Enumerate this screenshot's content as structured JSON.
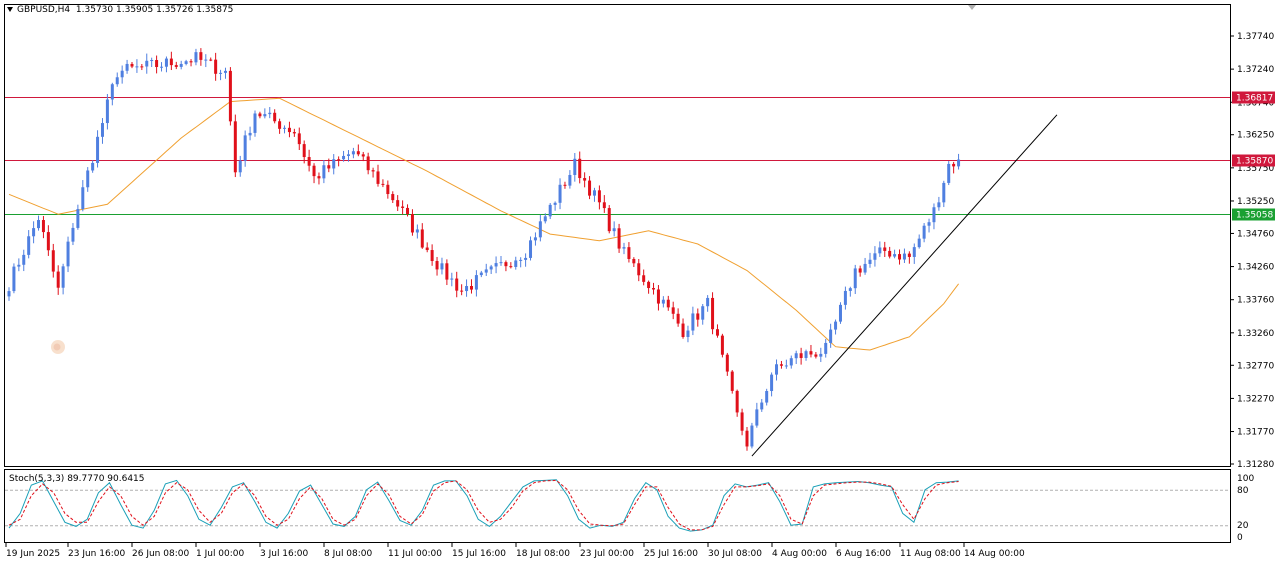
{
  "header": {
    "symbol": "GBPUSD,H4",
    "open": "1.35730",
    "high": "1.35905",
    "low": "1.35726",
    "close": "1.35875"
  },
  "stoch_header": {
    "label": "Stoch(5,3,3)",
    "main": "89.7770",
    "signal": "90.6415"
  },
  "colors": {
    "bull": "#4f7fe0",
    "bear": "#e0101a",
    "ma": "#f0a030",
    "resistance": "#d0183c",
    "support": "#1aa032",
    "trendline": "#000000",
    "stoch_main": "#1aa0b8",
    "stoch_signal": "#e0101a"
  },
  "price_axis": {
    "labels": [
      "1.37740",
      "1.37240",
      "1.36740",
      "1.36250",
      "1.35750",
      "1.35250",
      "1.34760",
      "1.34260",
      "1.33760",
      "1.33260",
      "1.32770",
      "1.32270",
      "1.31770",
      "1.31280"
    ]
  },
  "levels": [
    {
      "name": "resistance-upper",
      "value": "1.36817",
      "color": "#d0183c"
    },
    {
      "name": "resistance-lower",
      "value": "1.35870",
      "color": "#d0183c"
    },
    {
      "name": "support",
      "value": "1.35058",
      "color": "#1aa032"
    }
  ],
  "time_axis": {
    "labels": [
      "19 Jun 2025",
      "23 Jun 16:00",
      "26 Jun 08:00",
      "1 Jul 00:00",
      "3 Jul 16:00",
      "8 Jul 08:00",
      "11 Jul 00:00",
      "15 Jul 16:00",
      "18 Jul 08:00",
      "23 Jul 00:00",
      "25 Jul 16:00",
      "30 Jul 08:00",
      "4 Aug 00:00",
      "6 Aug 16:00",
      "11 Aug 08:00",
      "14 Aug 00:00"
    ]
  },
  "stoch_axis": {
    "labels": [
      "100",
      "80",
      "20",
      "0"
    ]
  },
  "chart_data": {
    "type": "candlestick",
    "title": "GBPUSD,H4",
    "ylim": [
      1.3128,
      1.3805
    ],
    "key_points": [
      {
        "i": 0,
        "price": 1.34
      },
      {
        "i": 6,
        "price": 1.35
      },
      {
        "i": 10,
        "price": 1.339
      },
      {
        "i": 13,
        "price": 1.349
      },
      {
        "i": 22,
        "price": 1.372
      },
      {
        "i": 38,
        "price": 1.374
      },
      {
        "i": 44,
        "price": 1.372
      },
      {
        "i": 46,
        "price": 1.357
      },
      {
        "i": 50,
        "price": 1.366
      },
      {
        "i": 58,
        "price": 1.363
      },
      {
        "i": 62,
        "price": 1.356
      },
      {
        "i": 70,
        "price": 1.36
      },
      {
        "i": 78,
        "price": 1.353
      },
      {
        "i": 88,
        "price": 1.342
      },
      {
        "i": 92,
        "price": 1.339
      },
      {
        "i": 105,
        "price": 1.345
      },
      {
        "i": 115,
        "price": 1.358
      },
      {
        "i": 120,
        "price": 1.352
      },
      {
        "i": 125,
        "price": 1.3445
      },
      {
        "i": 130,
        "price": 1.34
      },
      {
        "i": 137,
        "price": 1.333
      },
      {
        "i": 142,
        "price": 1.337
      },
      {
        "i": 148,
        "price": 1.32
      },
      {
        "i": 150,
        "price": 1.316
      },
      {
        "i": 155,
        "price": 1.3265
      },
      {
        "i": 160,
        "price": 1.329
      },
      {
        "i": 166,
        "price": 1.33
      },
      {
        "i": 172,
        "price": 1.342
      },
      {
        "i": 178,
        "price": 1.345
      },
      {
        "i": 183,
        "price": 1.344
      },
      {
        "i": 188,
        "price": 1.351
      },
      {
        "i": 191,
        "price": 1.358
      },
      {
        "i": 193,
        "price": 1.35875
      }
    ],
    "moving_average": [
      {
        "i": 0,
        "price": 1.3535
      },
      {
        "i": 10,
        "price": 1.3505
      },
      {
        "i": 20,
        "price": 1.352
      },
      {
        "i": 35,
        "price": 1.362
      },
      {
        "i": 45,
        "price": 1.3675
      },
      {
        "i": 55,
        "price": 1.368
      },
      {
        "i": 70,
        "price": 1.3625
      },
      {
        "i": 85,
        "price": 1.357
      },
      {
        "i": 100,
        "price": 1.351
      },
      {
        "i": 110,
        "price": 1.3475
      },
      {
        "i": 120,
        "price": 1.3465
      },
      {
        "i": 130,
        "price": 1.348
      },
      {
        "i": 140,
        "price": 1.346
      },
      {
        "i": 150,
        "price": 1.342
      },
      {
        "i": 160,
        "price": 1.336
      },
      {
        "i": 168,
        "price": 1.3305
      },
      {
        "i": 175,
        "price": 1.33
      },
      {
        "i": 183,
        "price": 1.332
      },
      {
        "i": 190,
        "price": 1.337
      },
      {
        "i": 193,
        "price": 1.34
      }
    ],
    "trendline": [
      {
        "i": 151,
        "price": 1.314
      },
      {
        "i": 213,
        "price": 1.3655
      }
    ],
    "stochastic": {
      "k": [
        15,
        40,
        88,
        95,
        60,
        25,
        18,
        30,
        75,
        92,
        55,
        20,
        15,
        45,
        90,
        96,
        70,
        30,
        20,
        50,
        85,
        92,
        60,
        25,
        15,
        40,
        78,
        88,
        55,
        22,
        18,
        35,
        80,
        93,
        62,
        28,
        20,
        45,
        88,
        95,
        95,
        70,
        30,
        18,
        35,
        60,
        85,
        95,
        96,
        97,
        70,
        30,
        15,
        20,
        18,
        25,
        65,
        92,
        80,
        35,
        15,
        10,
        12,
        20,
        70,
        90,
        85,
        88,
        92,
        60,
        20,
        22,
        85,
        90,
        92,
        93,
        94,
        92,
        88,
        85,
        40,
        25,
        80,
        92,
        93,
        95
      ],
      "d": [
        20,
        30,
        70,
        90,
        75,
        40,
        25,
        25,
        60,
        85,
        70,
        35,
        20,
        35,
        75,
        92,
        80,
        45,
        25,
        40,
        75,
        90,
        70,
        35,
        20,
        30,
        65,
        85,
        65,
        30,
        20,
        30,
        70,
        90,
        72,
        35,
        22,
        38,
        78,
        92,
        95,
        80,
        45,
        25,
        30,
        50,
        78,
        92,
        95,
        96,
        80,
        45,
        22,
        20,
        19,
        22,
        55,
        85,
        85,
        50,
        22,
        12,
        12,
        18,
        55,
        85,
        85,
        87,
        90,
        70,
        30,
        22,
        70,
        88,
        90,
        92,
        93,
        93,
        90,
        86,
        55,
        30,
        65,
        88,
        92,
        94
      ]
    }
  }
}
